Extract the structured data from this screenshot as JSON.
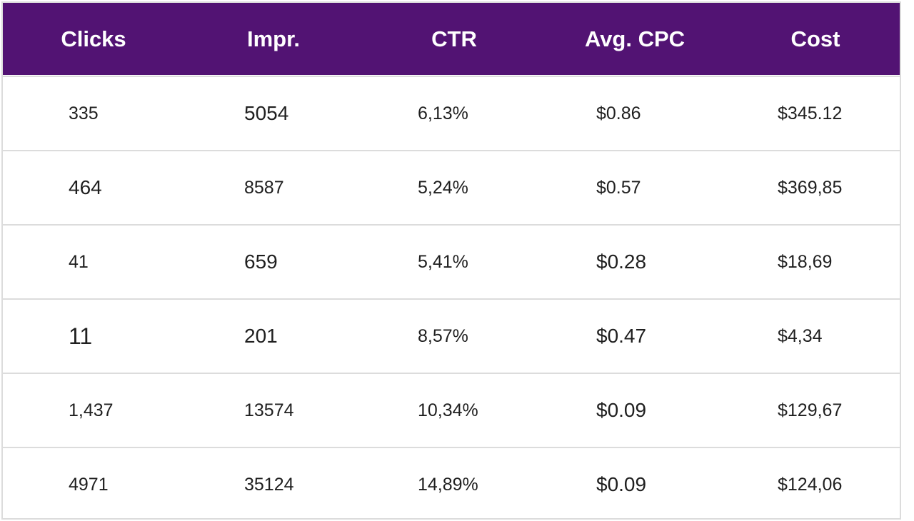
{
  "table": {
    "headers": [
      "Clicks",
      "Impr.",
      "CTR",
      "Avg. CPC",
      "Cost"
    ],
    "rows": [
      [
        "335",
        "5054",
        "6,13%",
        "$0.86",
        "$345.12"
      ],
      [
        "464",
        "8587",
        "5,24%",
        "$0.57",
        "$369,85"
      ],
      [
        "41",
        "659",
        "5,41%",
        "$0.28",
        "$18,69"
      ],
      [
        "11",
        "201",
        "8,57%",
        "$0.47",
        "$4,34"
      ],
      [
        "1,437",
        "13574",
        "10,34%",
        "$0.09",
        "$129,67"
      ],
      [
        "4971",
        "35124",
        "14,89%",
        "$0.09",
        "$124,06"
      ]
    ]
  },
  "colors": {
    "header_background": "#521373",
    "header_text": "#ffffff",
    "cell_text": "#1f1f1f",
    "grid_lines": "#dcdcdc"
  }
}
